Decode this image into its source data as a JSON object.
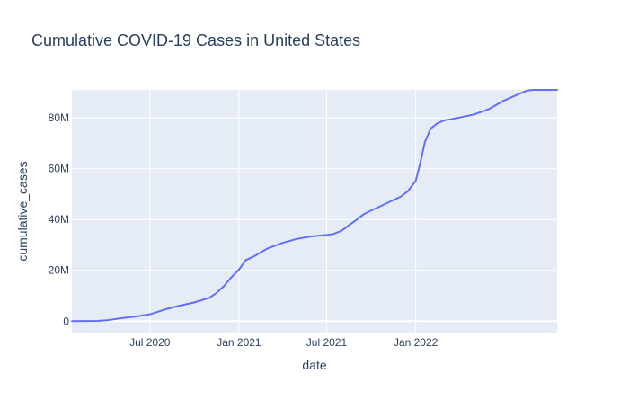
{
  "chart_data": {
    "type": "line",
    "title": "Cumulative COVID-19 Cases in United States",
    "xlabel": "date",
    "ylabel": "cumulative_cases",
    "x_tick_labels": [
      {
        "date": "2020-07-01",
        "label": "Jul 2020"
      },
      {
        "date": "2021-01-01",
        "label": "Jan 2021"
      },
      {
        "date": "2021-07-01",
        "label": "Jul 2021"
      },
      {
        "date": "2022-01-01",
        "label": "Jan 2022"
      }
    ],
    "y_tick_labels": [
      {
        "value": 0,
        "label": "0"
      },
      {
        "value": 20000000,
        "label": "20M"
      },
      {
        "value": 40000000,
        "label": "40M"
      },
      {
        "value": 60000000,
        "label": "60M"
      },
      {
        "value": 80000000,
        "label": "80M"
      }
    ],
    "xlim": [
      "2020-01-22",
      "2022-10-20"
    ],
    "ylim": [
      -4500000,
      91000000
    ],
    "grid": true,
    "colors": {
      "line": "#636efa",
      "plot_bg": "#e5ecf6",
      "grid": "#ffffff",
      "text": "#2a3f5f",
      "title": "#2a3f5f"
    },
    "series": [
      {
        "x": [
          "2020-01-22",
          "2020-03-15",
          "2020-04-01",
          "2020-05-01",
          "2020-06-01",
          "2020-07-01",
          "2020-08-01",
          "2020-09-01",
          "2020-10-01",
          "2020-11-01",
          "2020-11-15",
          "2020-12-01",
          "2020-12-15",
          "2021-01-01",
          "2021-01-15",
          "2021-02-01",
          "2021-03-01",
          "2021-04-01",
          "2021-05-01",
          "2021-06-01",
          "2021-07-01",
          "2021-07-15",
          "2021-08-01",
          "2021-08-15",
          "2021-09-01",
          "2021-09-15",
          "2021-10-01",
          "2021-11-01",
          "2021-12-01",
          "2021-12-15",
          "2022-01-01",
          "2022-01-10",
          "2022-01-20",
          "2022-02-01",
          "2022-02-15",
          "2022-03-01",
          "2022-04-01",
          "2022-05-01",
          "2022-06-01",
          "2022-07-01",
          "2022-08-01",
          "2022-08-20",
          "2022-09-01",
          "2022-10-20"
        ],
        "y": [
          0,
          100000,
          300000,
          1100000,
          1800000,
          2700000,
          4600000,
          6100000,
          7400000,
          9200000,
          11000000,
          13800000,
          17000000,
          20300000,
          24000000,
          25500000,
          28600000,
          30800000,
          32400000,
          33400000,
          33900000,
          34300000,
          35600000,
          37600000,
          39900000,
          42000000,
          43500000,
          46300000,
          49000000,
          51000000,
          55200000,
          62000000,
          70500000,
          75800000,
          77900000,
          79000000,
          80100000,
          81300000,
          83400000,
          86700000,
          89300000,
          90800000,
          92000000,
          95300000
        ]
      }
    ]
  }
}
